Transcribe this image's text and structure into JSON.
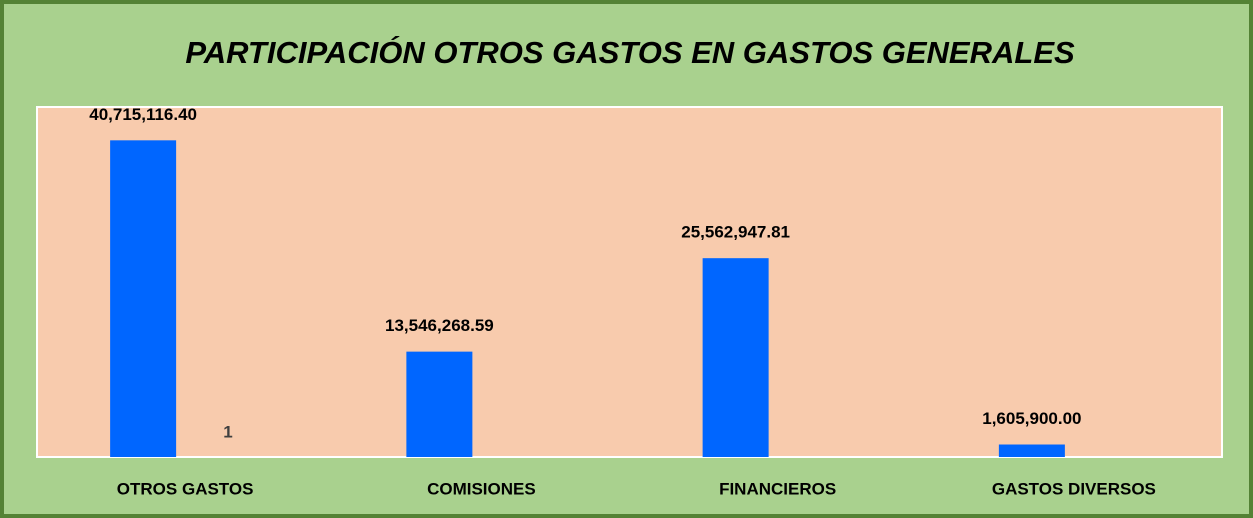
{
  "chart_data": {
    "type": "bar",
    "title": "PARTICIPACIÓN OTROS GASTOS EN GASTOS GENERALES",
    "categories": [
      "OTROS GASTOS",
      "COMISIONES",
      "FINANCIEROS",
      "GASTOS DIVERSOS"
    ],
    "values": [
      40715116.4,
      13546268.59,
      25562947.81,
      1605900.0
    ],
    "value_labels": [
      "40,715,116.40",
      "13,546,268.59",
      "25,562,947.81",
      "1,605,900.00"
    ],
    "color": "#0066ff",
    "annotation": "1",
    "ylim": [
      0,
      45000000
    ]
  }
}
